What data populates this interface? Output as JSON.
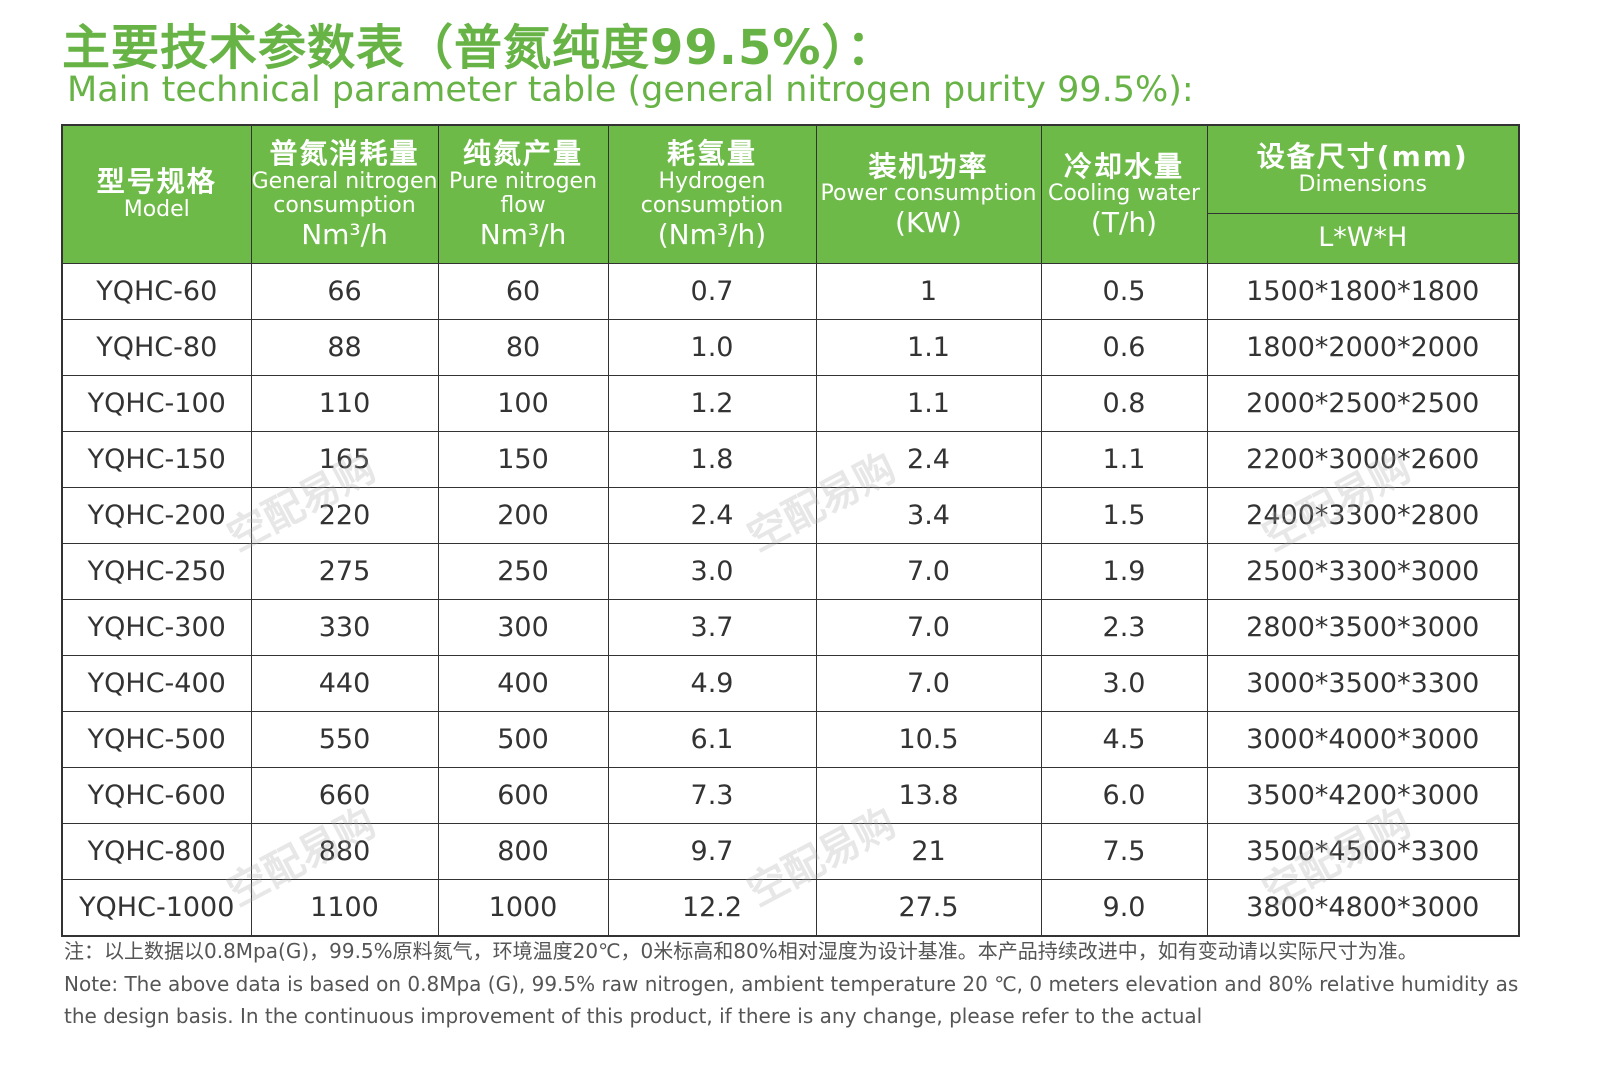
{
  "title_cn": "主要技术参数表（普氮纯度99.5%）：",
  "title_en": "Main technical parameter table (general nitrogen purity 99.5%):",
  "table": {
    "headers": [
      {
        "cn": "型号规格",
        "en": "Model",
        "unit": ""
      },
      {
        "cn": "普氮消耗量",
        "en": "General nitrogen consumption",
        "unit": "Nm³/h"
      },
      {
        "cn": "纯氮产量",
        "en": "Pure nitrogen flow",
        "unit": "Nm³/h"
      },
      {
        "cn": "耗氢量",
        "en": "Hydrogen consumption",
        "unit": "(Nm³/h)"
      },
      {
        "cn": "装机功率",
        "en": "Power consumption",
        "unit": "(KW)"
      },
      {
        "cn": "冷却水量",
        "en": "Cooling water",
        "unit": "(T/h)"
      },
      {
        "cn": "设备尺寸(mm)",
        "en": "Dimensions",
        "unit": "L*W*H"
      }
    ],
    "rows": [
      [
        "YQHC-60",
        "66",
        "60",
        "0.7",
        "1",
        "0.5",
        "1500*1800*1800"
      ],
      [
        "YQHC-80",
        "88",
        "80",
        "1.0",
        "1.1",
        "0.6",
        "1800*2000*2000"
      ],
      [
        "YQHC-100",
        "110",
        "100",
        "1.2",
        "1.1",
        "0.8",
        "2000*2500*2500"
      ],
      [
        "YQHC-150",
        "165",
        "150",
        "1.8",
        "2.4",
        "1.1",
        "2200*3000*2600"
      ],
      [
        "YQHC-200",
        "220",
        "200",
        "2.4",
        "3.4",
        "1.5",
        "2400*3300*2800"
      ],
      [
        "YQHC-250",
        "275",
        "250",
        "3.0",
        "7.0",
        "1.9",
        "2500*3300*3000"
      ],
      [
        "YQHC-300",
        "330",
        "300",
        "3.7",
        "7.0",
        "2.3",
        "2800*3500*3000"
      ],
      [
        "YQHC-400",
        "440",
        "400",
        "4.9",
        "7.0",
        "3.0",
        "3000*3500*3300"
      ],
      [
        "YQHC-500",
        "550",
        "500",
        "6.1",
        "10.5",
        "4.5",
        "3000*4000*3000"
      ],
      [
        "YQHC-600",
        "660",
        "600",
        "7.3",
        "13.8",
        "6.0",
        "3500*4200*3000"
      ],
      [
        "YQHC-800",
        "880",
        "800",
        "9.7",
        "21",
        "7.5",
        "3500*4500*3300"
      ],
      [
        "YQHC-1000",
        "1100",
        "1000",
        "12.2",
        "27.5",
        "9.0",
        "3800*4800*3000"
      ]
    ]
  },
  "note_cn": "注：以上数据以0.8Mpa(G)，99.5%原料氮气，环境温度20℃，0米标高和80%相对湿度为设计基准。本产品持续改进中，如有变动请以实际尺寸为准。",
  "note_en": "Note: The above data is based on 0.8Mpa (G), 99.5% raw nitrogen, ambient temperature 20 ℃, 0 meters elevation and 80% relative humidity as the design basis. In the continuous improvement of this product, if there is any change, please refer to the actual",
  "watermark": "空配易购",
  "colors": {
    "accent": "#6dba48",
    "title": "#67b346"
  }
}
